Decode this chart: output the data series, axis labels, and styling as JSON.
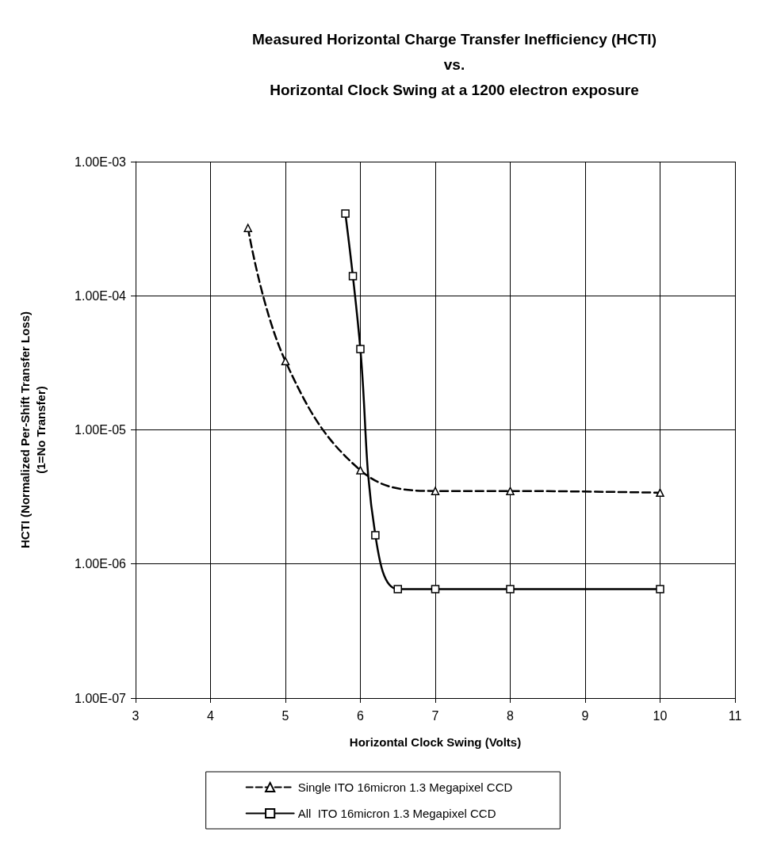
{
  "chart_data": {
    "type": "line",
    "title": "Measured Horizontal Charge Transfer Inefficiency (HCTI)\nvs.\nHorizontal Clock Swing at a 1200 electron exposure",
    "xlabel": "Horizontal Clock Swing (Volts)",
    "ylabel": "HCTI (Normalized Per-Shift Transfer Loss)\n(1=No Transfer)",
    "log": "y",
    "grid": true,
    "legend": "bottom",
    "xlim": [
      3,
      11
    ],
    "xticks": [
      3,
      4,
      5,
      6,
      7,
      8,
      9,
      10,
      11
    ],
    "ylim": [
      1e-07,
      0.001
    ],
    "yticks": [
      {
        "value": 1e-07,
        "label": "1.00E-07"
      },
      {
        "value": 1e-06,
        "label": "1.00E-06"
      },
      {
        "value": 1e-05,
        "label": "1.00E-05"
      },
      {
        "value": 0.0001,
        "label": "1.00E-04"
      },
      {
        "value": 0.001,
        "label": "1.00E-03"
      }
    ],
    "series": [
      {
        "name": "Single ITO 16micron 1.3 Megapixel CCD",
        "color": "#000000",
        "marker": "triangle",
        "line_style": "dashed",
        "x": [
          4.5,
          5,
          6,
          7,
          8,
          10
        ],
        "values": [
          0.00032,
          3.25e-05,
          5e-06,
          3.5e-06,
          3.5e-06,
          3.4e-06
        ]
      },
      {
        "name": "All  ITO 16micron 1.3 Megapixel CCD",
        "color": "#000000",
        "marker": "square",
        "line_style": "solid",
        "x": [
          5.8,
          5.9,
          6,
          6.2,
          6.5,
          7,
          8,
          10
        ],
        "values": [
          0.00041,
          0.00014,
          4e-05,
          1.64e-06,
          6.5e-07,
          6.5e-07,
          6.5e-07,
          6.5e-07
        ]
      }
    ]
  }
}
